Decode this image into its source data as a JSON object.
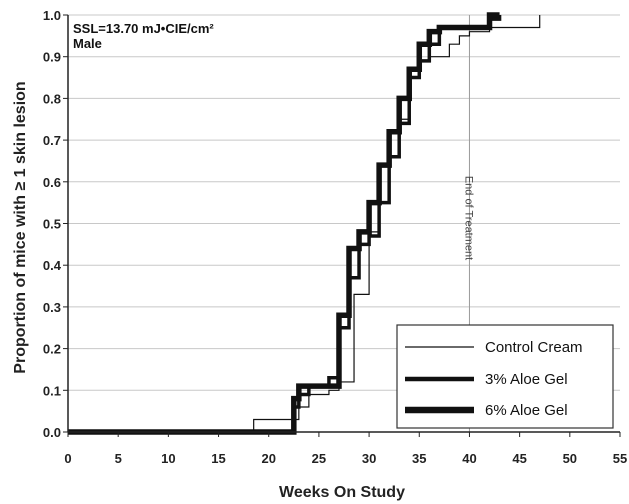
{
  "chart_data": {
    "type": "line",
    "step": true,
    "xlabel": "Weeks On Study",
    "ylabel": "Proportion of mice with ≥ 1 skin lesion",
    "xlim": [
      0,
      55
    ],
    "ylim": [
      0,
      1.0
    ],
    "xticks": [
      "0",
      "5",
      "10",
      "15",
      "20",
      "25",
      "30",
      "35",
      "40",
      "45",
      "50",
      "55"
    ],
    "yticks": [
      "0.0",
      "0.1",
      "0.2",
      "0.3",
      "0.4",
      "0.5",
      "0.6",
      "0.7",
      "0.8",
      "0.9",
      "1.0"
    ],
    "grid": "horizontal",
    "annotation_line1": "SSL=13.70 mJ•CIE/cm²",
    "annotation_line2": "Male",
    "vertical_line": {
      "x": 40,
      "label": "End of Treatment"
    },
    "legend_position": "bottom-right",
    "series": [
      {
        "name": "Control Cream",
        "x": [
          0,
          18.5,
          23,
          24,
          26,
          27,
          28.5,
          30,
          31,
          32,
          33,
          34,
          35,
          36,
          37,
          38,
          39,
          40,
          42,
          43,
          47
        ],
        "y": [
          0,
          0.03,
          0.06,
          0.09,
          0.1,
          0.12,
          0.33,
          0.48,
          0.55,
          0.66,
          0.75,
          0.85,
          0.89,
          0.9,
          0.9,
          0.93,
          0.95,
          0.96,
          0.97,
          0.97,
          1.0
        ]
      },
      {
        "name": "3% Aloe Gel",
        "x": [
          0,
          22.5,
          23,
          24,
          26,
          27,
          28,
          29,
          30,
          31,
          32,
          33,
          34,
          35,
          36,
          37,
          40,
          42,
          43
        ],
        "y": [
          0,
          0.06,
          0.09,
          0.11,
          0.13,
          0.25,
          0.37,
          0.45,
          0.47,
          0.55,
          0.66,
          0.74,
          0.85,
          0.89,
          0.93,
          0.97,
          0.97,
          0.99,
          1.0
        ]
      },
      {
        "name": "6% Aloe Gel",
        "x": [
          0,
          22.5,
          23,
          26,
          27,
          28,
          29,
          30,
          31,
          32,
          33,
          34,
          35,
          36,
          37,
          38,
          41,
          42,
          43
        ],
        "y": [
          0,
          0.08,
          0.11,
          0.11,
          0.28,
          0.44,
          0.48,
          0.55,
          0.64,
          0.72,
          0.8,
          0.87,
          0.93,
          0.96,
          0.97,
          0.97,
          0.97,
          1.0,
          1.0
        ]
      }
    ],
    "series_widths": [
      1.2,
      3.5,
      5.5
    ]
  }
}
